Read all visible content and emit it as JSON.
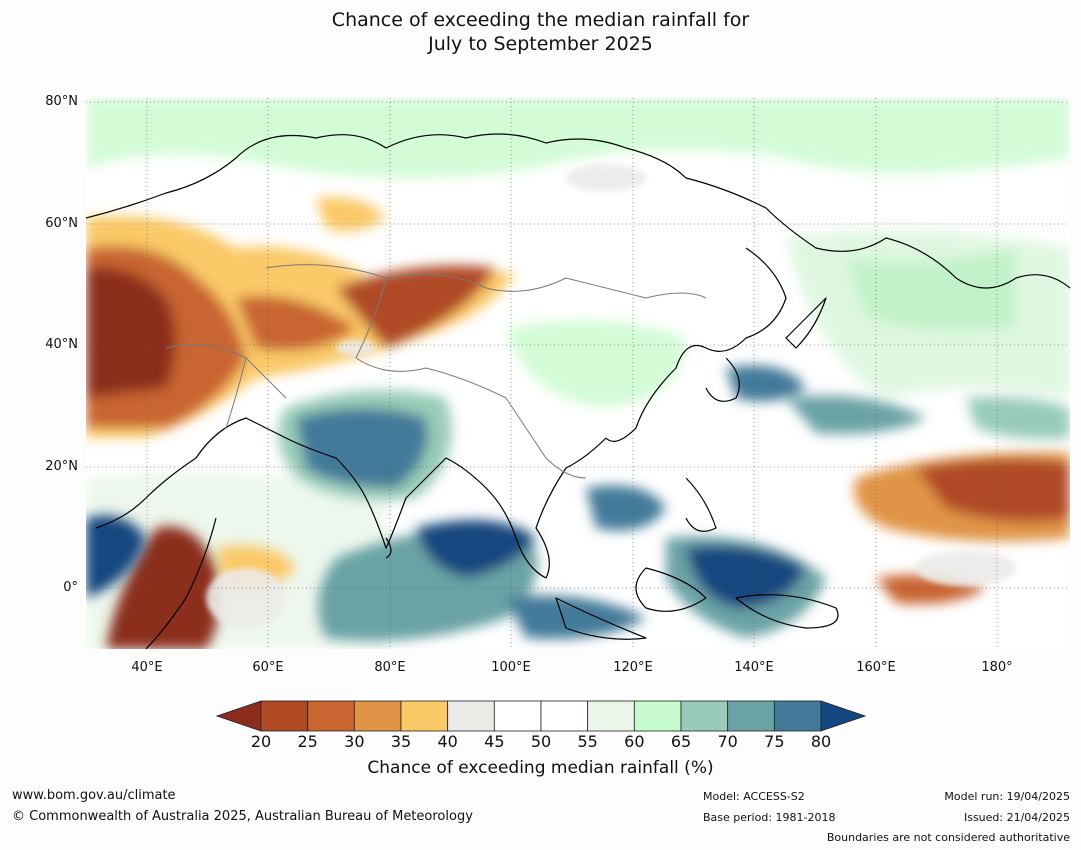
{
  "title_line1": "Chance of exceeding the median rainfall for",
  "title_line2": "July to September 2025",
  "map": {
    "lat_labels": [
      {
        "text": "80°N",
        "lat": 80
      },
      {
        "text": "60°N",
        "lat": 60
      },
      {
        "text": "40°N",
        "lat": 40
      },
      {
        "text": "20°N",
        "lat": 20
      },
      {
        "text": "0°",
        "lat": 0
      }
    ],
    "lon_labels": [
      {
        "text": "40°E",
        "lon": 40
      },
      {
        "text": "60°E",
        "lon": 60
      },
      {
        "text": "80°E",
        "lon": 80
      },
      {
        "text": "100°E",
        "lon": 100
      },
      {
        "text": "120°E",
        "lon": 120
      },
      {
        "text": "140°E",
        "lon": 140
      },
      {
        "text": "160°E",
        "lon": 160
      },
      {
        "text": "180°",
        "lon": 180
      }
    ],
    "extent": {
      "lon_min": 30,
      "lon_max": 192,
      "lat_min": -10,
      "lat_max": 80
    }
  },
  "colorbar": {
    "ticks": [
      "20",
      "25",
      "30",
      "35",
      "40",
      "45",
      "50",
      "55",
      "60",
      "65",
      "70",
      "75",
      "80"
    ],
    "colors": [
      "#8c2d1e",
      "#b04a25",
      "#c96530",
      "#e09447",
      "#fac968",
      "#ecebe8",
      "#ffffff",
      "#ffffff",
      "#e9f6e9",
      "#c8fbcd",
      "#99ccb8",
      "#6aa3a6",
      "#437a9a",
      "#13477f"
    ],
    "label": "Chance of exceeding median rainfall (%)"
  },
  "footer": {
    "website": "www.bom.gov.au/climate",
    "copyright": "© Commonwealth of Australia 2025, Australian Bureau of Meteorology",
    "model": "Model: ACCESS-S2",
    "base_period": "Base period: 1981-2018",
    "model_run": "Model run: 19/04/2025",
    "issued": "Issued: 21/04/2025",
    "disclaimer": "Boundaries are not considered authoritative"
  }
}
